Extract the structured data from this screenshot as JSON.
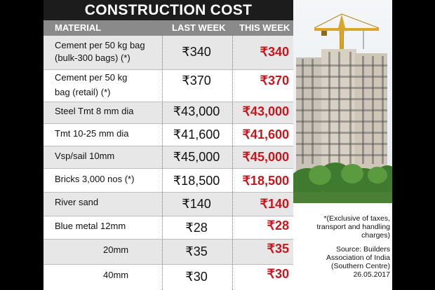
{
  "title": "CONSTRUCTION COST",
  "columns": {
    "material": "MATERIAL",
    "last_week": "LAST WEEK",
    "this_week": "THIS WEEK"
  },
  "rows": [
    {
      "material_line1": "Cement per 50 kg bag",
      "material_line2": "(bulk-300 bags) (*)",
      "last_week": "₹340",
      "this_week": "₹340"
    },
    {
      "material_line1": "Cement per 50 kg",
      "material_line2": "bag (retail) (*)",
      "last_week": "₹370",
      "this_week": "₹370"
    },
    {
      "material_line1": "Steel Tmt 8 mm dia",
      "material_line2": "",
      "last_week": "₹43,000",
      "this_week": "₹43,000"
    },
    {
      "material_line1": "Tmt 10-25 mm dia",
      "material_line2": "",
      "last_week": "₹41,600",
      "this_week": "₹41,600"
    },
    {
      "material_line1": "Vsp/sail 10mm",
      "material_line2": "",
      "last_week": "₹45,000",
      "this_week": "₹45,000"
    },
    {
      "material_line1": "Bricks 3,000 nos  (*)",
      "material_line2": "",
      "last_week": "₹18,500",
      "this_week": "₹18,500"
    },
    {
      "material_line1": "River sand",
      "material_line2": "",
      "last_week": "₹140",
      "this_week": "₹140"
    },
    {
      "material_line1": "Blue metal   12mm",
      "material_line2": "",
      "last_week": "₹28",
      "this_week": "₹28"
    },
    {
      "material_line1": "20mm",
      "material_line2": "",
      "last_week": "₹35",
      "this_week": "₹35"
    },
    {
      "material_line1": "40mm",
      "material_line2": "",
      "last_week": "₹30",
      "this_week": "₹30"
    }
  ],
  "notes": {
    "exclusive_line1": "*(Exclusive of taxes,",
    "exclusive_line2": "transport and handling",
    "exclusive_line3": "charges)",
    "source_line1": "Source: Builders",
    "source_line2": "Association of India",
    "source_line3": "(Southern Centre)",
    "date": "26.05.2017"
  },
  "colors": {
    "this_week": "#c8161d",
    "title_bg": "#1c1c1c",
    "header_bg": "#8a8a8a",
    "shade": "#e7e7e7"
  }
}
